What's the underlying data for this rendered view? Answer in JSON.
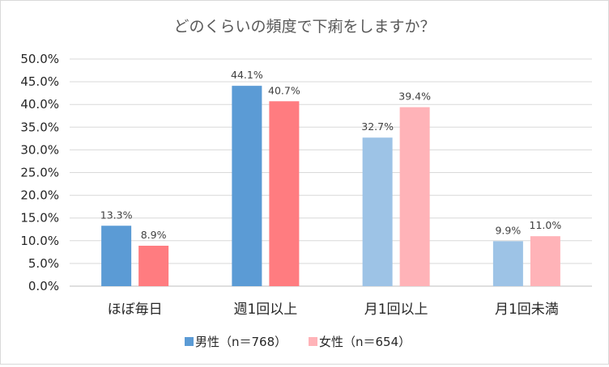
{
  "chart_data": {
    "type": "bar",
    "title": "どのくらいの頻度で下痢をしますか？",
    "categories": [
      "ほぼ毎日",
      "週1回以上",
      "月1回以上",
      "月1回未満"
    ],
    "series": [
      {
        "name": "男性（n＝768）",
        "values": [
          13.3,
          44.1,
          32.7,
          9.9
        ],
        "labels": [
          "13.3%",
          "44.1%",
          "32.7%",
          "9.9%"
        ]
      },
      {
        "name": "女性（n＝654）",
        "values": [
          8.9,
          40.7,
          39.4,
          11.0
        ],
        "labels": [
          "8.9%",
          "40.7%",
          "39.4%",
          "11.0%"
        ]
      }
    ],
    "bar_colors": [
      [
        "#5b9bd5",
        "#5b9bd5",
        "#9dc3e6",
        "#9dc3e6"
      ],
      [
        "#ff7c80",
        "#ff7c80",
        "#ffb3b8",
        "#ffb3b8"
      ]
    ],
    "legend_colors": [
      "#5b9bd5",
      "#ffb3b8"
    ],
    "ylim": [
      0,
      50
    ],
    "yticks": [
      "0.0%",
      "5.0%",
      "10.0%",
      "15.0%",
      "20.0%",
      "25.0%",
      "30.0%",
      "35.0%",
      "40.0%",
      "45.0%",
      "50.0%"
    ],
    "grid": true,
    "legend_position": "bottom"
  }
}
